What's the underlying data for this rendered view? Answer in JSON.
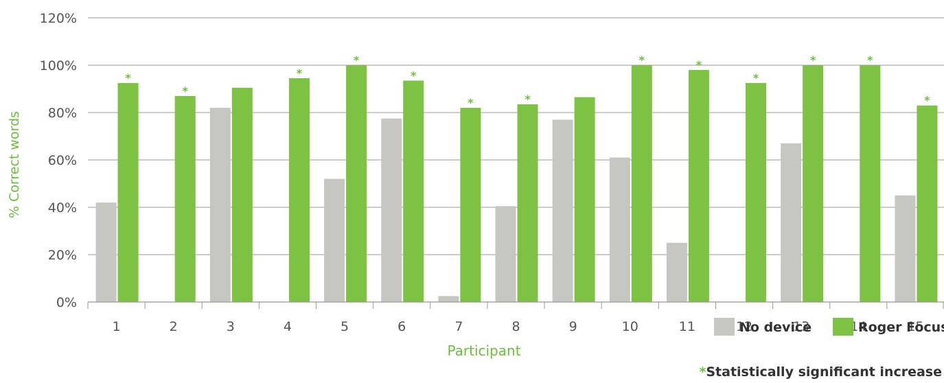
{
  "chart_data": {
    "type": "bar",
    "categories": [
      "1",
      "2",
      "3",
      "4",
      "5",
      "6",
      "7",
      "8",
      "9",
      "10",
      "11",
      "12",
      "13",
      "14",
      "15"
    ],
    "series": [
      {
        "name": "No device",
        "color": "#c6c6c2",
        "values": [
          42,
          0,
          82,
          0,
          52,
          77.5,
          2.5,
          40.5,
          77,
          61,
          25,
          0,
          67,
          0,
          45
        ]
      },
      {
        "name": "Roger Focus",
        "color": "#7dc242",
        "values": [
          92.5,
          87,
          90.5,
          94.5,
          100,
          93.5,
          82,
          83.5,
          86.5,
          100,
          98,
          92.5,
          100,
          100,
          83
        ]
      }
    ],
    "significant": [
      true,
      true,
      false,
      true,
      true,
      true,
      true,
      true,
      false,
      true,
      true,
      true,
      true,
      true,
      true
    ],
    "significance_marker": "*",
    "ylim": [
      0,
      120
    ],
    "yticks": [
      0,
      20,
      40,
      60,
      80,
      100,
      120
    ],
    "ytick_suffix": "%",
    "grid": true,
    "ylabel": "% Correct words",
    "xlabel": "Participant",
    "legend_position": "bottom-right",
    "footnote": "Statistically significant increase"
  }
}
